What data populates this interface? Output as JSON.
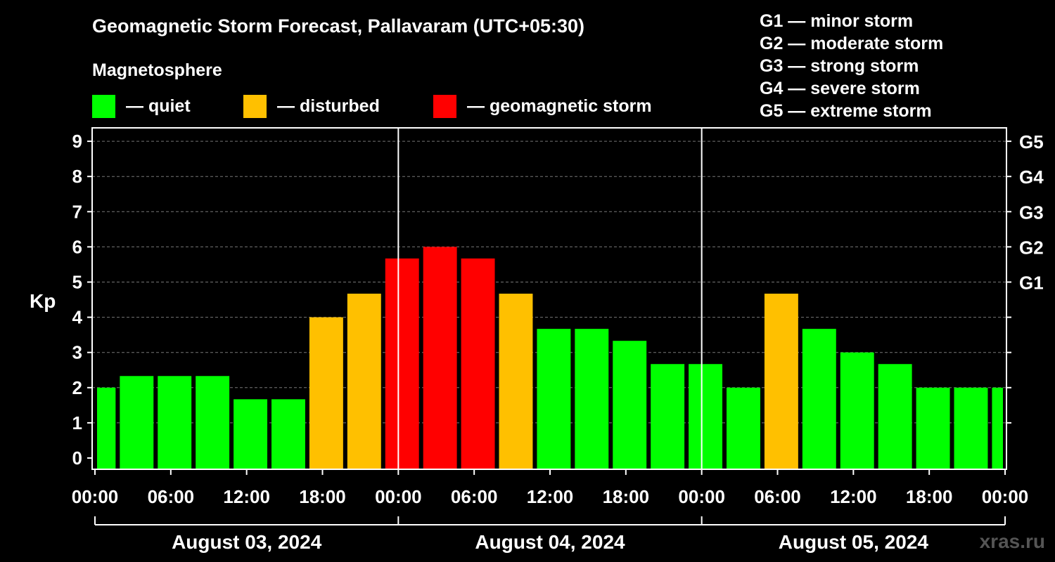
{
  "chart_data": {
    "type": "bar",
    "title": "Geomagnetic Storm Forecast, Pallavaram (UTC+05:30)",
    "ylabel": "Kp",
    "ylim": [
      0,
      9.5
    ],
    "yticks": [
      "0",
      "1",
      "2",
      "3",
      "4",
      "5",
      "6",
      "7",
      "8",
      "9"
    ],
    "right_axis": [
      {
        "label": "G1",
        "kp": 5
      },
      {
        "label": "G2",
        "kp": 6
      },
      {
        "label": "G3",
        "kp": 7
      },
      {
        "label": "G4",
        "kp": 8
      },
      {
        "label": "G5",
        "kp": 9
      }
    ],
    "xticks": [
      "00:00",
      "06:00",
      "12:00",
      "18:00",
      "00:00",
      "06:00",
      "12:00",
      "18:00",
      "00:00",
      "06:00",
      "12:00",
      "18:00",
      "00:00"
    ],
    "x_range_hours": [
      0,
      72
    ],
    "day_boundaries_hours": [
      24,
      48
    ],
    "dates": [
      {
        "label": "August 03, 2024",
        "start": 0,
        "end": 24
      },
      {
        "label": "August 04, 2024",
        "start": 24,
        "end": 48
      },
      {
        "label": "August 05, 2024",
        "start": 48,
        "end": 72
      }
    ],
    "bars": [
      {
        "start": 0,
        "end": 1.8,
        "kp": 2.0,
        "level": "quiet"
      },
      {
        "start": 1.8,
        "end": 4.8,
        "kp": 2.33,
        "level": "quiet"
      },
      {
        "start": 4.8,
        "end": 7.8,
        "kp": 2.33,
        "level": "quiet"
      },
      {
        "start": 7.8,
        "end": 10.8,
        "kp": 2.33,
        "level": "quiet"
      },
      {
        "start": 10.8,
        "end": 13.8,
        "kp": 1.67,
        "level": "quiet"
      },
      {
        "start": 13.8,
        "end": 16.8,
        "kp": 1.67,
        "level": "quiet"
      },
      {
        "start": 16.8,
        "end": 19.8,
        "kp": 4.0,
        "level": "disturbed"
      },
      {
        "start": 19.8,
        "end": 22.8,
        "kp": 4.67,
        "level": "disturbed"
      },
      {
        "start": 22.8,
        "end": 25.8,
        "kp": 5.67,
        "level": "storm"
      },
      {
        "start": 25.8,
        "end": 28.8,
        "kp": 6.0,
        "level": "storm"
      },
      {
        "start": 28.8,
        "end": 31.8,
        "kp": 5.67,
        "level": "storm"
      },
      {
        "start": 31.8,
        "end": 34.8,
        "kp": 4.67,
        "level": "disturbed"
      },
      {
        "start": 34.8,
        "end": 37.8,
        "kp": 3.67,
        "level": "quiet"
      },
      {
        "start": 37.8,
        "end": 40.8,
        "kp": 3.67,
        "level": "quiet"
      },
      {
        "start": 40.8,
        "end": 43.8,
        "kp": 3.33,
        "level": "quiet"
      },
      {
        "start": 43.8,
        "end": 46.8,
        "kp": 2.67,
        "level": "quiet"
      },
      {
        "start": 46.8,
        "end": 49.8,
        "kp": 2.67,
        "level": "quiet"
      },
      {
        "start": 49.8,
        "end": 52.8,
        "kp": 2.0,
        "level": "quiet"
      },
      {
        "start": 52.8,
        "end": 55.8,
        "kp": 4.67,
        "level": "disturbed"
      },
      {
        "start": 55.8,
        "end": 58.8,
        "kp": 3.67,
        "level": "quiet"
      },
      {
        "start": 58.8,
        "end": 61.8,
        "kp": 3.0,
        "level": "quiet"
      },
      {
        "start": 61.8,
        "end": 64.8,
        "kp": 2.67,
        "level": "quiet"
      },
      {
        "start": 64.8,
        "end": 67.8,
        "kp": 2.0,
        "level": "quiet"
      },
      {
        "start": 67.8,
        "end": 70.8,
        "kp": 2.0,
        "level": "quiet"
      },
      {
        "start": 70.8,
        "end": 72,
        "kp": 2.0,
        "level": "quiet"
      }
    ]
  },
  "legend": {
    "title": "Magnetosphere",
    "items": [
      {
        "key": "quiet",
        "label": "— quiet",
        "color": "#00ff00"
      },
      {
        "key": "disturbed",
        "label": "— disturbed",
        "color": "#ffc000"
      },
      {
        "key": "storm",
        "label": "— geomagnetic storm",
        "color": "#ff0000"
      }
    ]
  },
  "storm_scale": [
    "G1 — minor storm",
    "G2 — moderate storm",
    "G3 — strong storm",
    "G4 — severe storm",
    "G5 — extreme storm"
  ],
  "watermark": "xras.ru"
}
